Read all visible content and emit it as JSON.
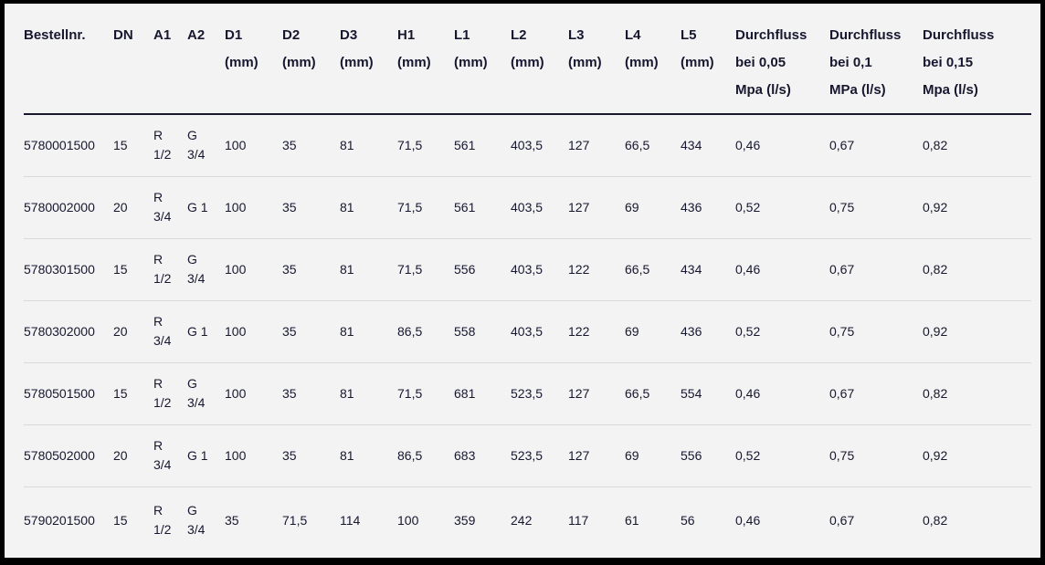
{
  "colors": {
    "frame": "#000000",
    "background": "#f3f3f4",
    "text": "#17172f",
    "header_rule": "#17172f",
    "row_divider": "#d9d9da"
  },
  "table": {
    "columns": [
      {
        "id": "bestellnr",
        "lines": [
          "Bestellnr."
        ]
      },
      {
        "id": "dn",
        "lines": [
          "DN"
        ]
      },
      {
        "id": "a1",
        "lines": [
          "A1"
        ]
      },
      {
        "id": "a2",
        "lines": [
          "A2"
        ]
      },
      {
        "id": "d1",
        "lines": [
          "D1",
          "(mm)"
        ]
      },
      {
        "id": "d2",
        "lines": [
          "D2",
          "(mm)"
        ]
      },
      {
        "id": "d3",
        "lines": [
          "D3",
          "(mm)"
        ]
      },
      {
        "id": "h1",
        "lines": [
          "H1",
          "(mm)"
        ]
      },
      {
        "id": "l1",
        "lines": [
          "L1",
          "(mm)"
        ]
      },
      {
        "id": "l2",
        "lines": [
          "L2",
          "(mm)"
        ]
      },
      {
        "id": "l3",
        "lines": [
          "L3",
          "(mm)"
        ]
      },
      {
        "id": "l4",
        "lines": [
          "L4",
          "(mm)"
        ]
      },
      {
        "id": "l5",
        "lines": [
          "L5",
          "(mm)"
        ]
      },
      {
        "id": "df005",
        "lines": [
          "Durchfluss",
          "bei 0,05",
          "Mpa (l/s)"
        ]
      },
      {
        "id": "df01",
        "lines": [
          "Durchfluss",
          "bei 0,1",
          "MPa (l/s)"
        ]
      },
      {
        "id": "df015",
        "lines": [
          "Durchfluss",
          "bei 0,15",
          "Mpa (l/s)"
        ]
      }
    ],
    "rows": [
      [
        "5780001500",
        "15",
        "R 1/2",
        "G 3/4",
        "100",
        "35",
        "81",
        "71,5",
        "561",
        "403,5",
        "127",
        "66,5",
        "434",
        "0,46",
        "0,67",
        "0,82"
      ],
      [
        "5780002000",
        "20",
        "R 3/4",
        "G 1",
        "100",
        "35",
        "81",
        "71,5",
        "561",
        "403,5",
        "127",
        "69",
        "436",
        "0,52",
        "0,75",
        "0,92"
      ],
      [
        "5780301500",
        "15",
        "R 1/2",
        "G 3/4",
        "100",
        "35",
        "81",
        "71,5",
        "556",
        "403,5",
        "122",
        "66,5",
        "434",
        "0,46",
        "0,67",
        "0,82"
      ],
      [
        "5780302000",
        "20",
        "R 3/4",
        "G 1",
        "100",
        "35",
        "81",
        "86,5",
        "558",
        "403,5",
        "122",
        "69",
        "436",
        "0,52",
        "0,75",
        "0,92"
      ],
      [
        "5780501500",
        "15",
        "R 1/2",
        "G 3/4",
        "100",
        "35",
        "81",
        "71,5",
        "681",
        "523,5",
        "127",
        "66,5",
        "554",
        "0,46",
        "0,67",
        "0,82"
      ],
      [
        "5780502000",
        "20",
        "R 3/4",
        "G 1",
        "100",
        "35",
        "81",
        "86,5",
        "683",
        "523,5",
        "127",
        "69",
        "556",
        "0,52",
        "0,75",
        "0,92"
      ],
      [
        "5790201500",
        "15",
        "R 1/2",
        "G 3/4",
        "35",
        "71,5",
        "114",
        "100",
        "359",
        "242",
        "117",
        "61",
        "56",
        "0,46",
        "0,67",
        "0,82"
      ]
    ]
  }
}
